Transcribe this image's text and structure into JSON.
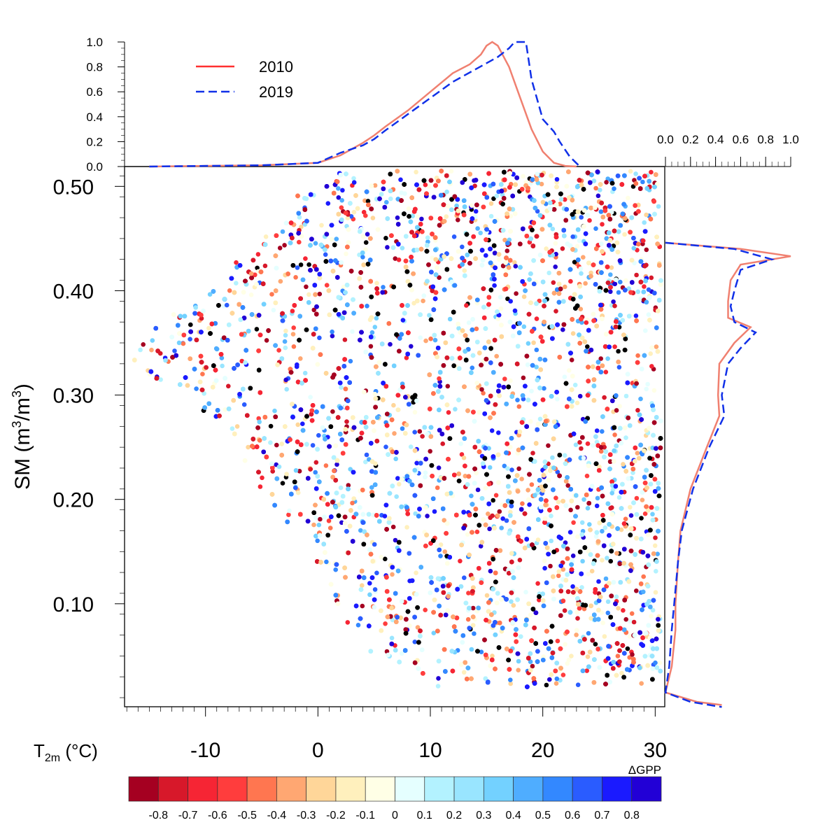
{
  "chart_data": {
    "type": "scatter",
    "xlabel": "T",
    "xlabel_sub": "2m",
    "xlabel_unit": " (°C)",
    "ylabel": "SM (m",
    "ylabel_sup1": "3",
    "ylabel_mid": "/m",
    "ylabel_sup2": "3",
    "ylabel_end": ")",
    "xlim": [
      -17.2,
      30.85
    ],
    "ylim": [
      0.0013,
      0.519
    ],
    "xticks": [
      {
        "v": -10,
        "l": "-10"
      },
      {
        "v": 0,
        "l": "0"
      },
      {
        "v": 10,
        "l": "10"
      },
      {
        "v": 20,
        "l": "20"
      },
      {
        "v": 30,
        "l": "30"
      }
    ],
    "yticks": [
      {
        "v": 0.5,
        "l": "0.50"
      },
      {
        "v": 0.4,
        "l": "0.40"
      },
      {
        "v": 0.3,
        "l": "0.30"
      },
      {
        "v": 0.2,
        "l": "0.20"
      },
      {
        "v": 0.1,
        "l": "0.10"
      }
    ],
    "scatter_envelope": {
      "sm": [
        0.02,
        0.05,
        0.1,
        0.15,
        0.2,
        0.25,
        0.3,
        0.33,
        0.36,
        0.4,
        0.45,
        0.5,
        0.515
      ],
      "tmin": [
        12,
        6,
        2.5,
        0.5,
        -3,
        -6,
        -12,
        -15,
        -14,
        -8,
        -4,
        0.5,
        1
      ],
      "tmax": 30.5,
      "n_points": 9000,
      "black_fraction": 0.05
    },
    "colorbar": {
      "title": "ΔGPP",
      "labels": [
        "-0.8",
        "-0.7",
        "-0.6",
        "-0.5",
        "-0.4",
        "-0.3",
        "-0.2",
        "-0.1",
        "0",
        "0.1",
        "0.2",
        "0.3",
        "0.4",
        "0.5",
        "0.6",
        "0.7",
        "0.8"
      ],
      "colors": [
        "#a50021",
        "#d7182a",
        "#f62534",
        "#ff3d3d",
        "#ff7650",
        "#ffa772",
        "#ffd699",
        "#fff0bd",
        "#ffffe6",
        "#e5ffff",
        "#b3f2ff",
        "#99e5ff",
        "#73d1ff",
        "#4fadff",
        "#3388ff",
        "#2a5cff",
        "#1a1aff",
        "#2200d6"
      ]
    },
    "top_marginal": {
      "ylim": [
        0,
        1
      ],
      "yticks": [
        "0.0",
        "0.2",
        "0.4",
        "0.6",
        "0.8",
        "1.0"
      ],
      "series": [
        {
          "name": "2010",
          "color": "#f08070",
          "dash": false,
          "x": [
            -15,
            -5,
            0,
            2,
            4,
            5,
            6,
            8,
            10,
            12,
            13.5,
            14.5,
            15,
            15.5,
            16,
            17,
            18,
            19,
            20,
            21,
            22,
            23
          ],
          "y": [
            0,
            0.01,
            0.03,
            0.09,
            0.19,
            0.25,
            0.32,
            0.45,
            0.6,
            0.75,
            0.82,
            0.9,
            0.97,
            1.0,
            0.97,
            0.8,
            0.55,
            0.3,
            0.12,
            0.03,
            0.005,
            0
          ]
        },
        {
          "name": "2019",
          "color": "#1030e8",
          "dash": true,
          "x": [
            -15,
            -5,
            0,
            2,
            4,
            5,
            6,
            8,
            10,
            12,
            14,
            15,
            16,
            17,
            17.5,
            18.5,
            19,
            20,
            21,
            21.5,
            22.4,
            23.3
          ],
          "y": [
            0,
            0.01,
            0.03,
            0.11,
            0.17,
            0.22,
            0.29,
            0.42,
            0.55,
            0.68,
            0.78,
            0.83,
            0.88,
            0.95,
            1.0,
            1.0,
            0.7,
            0.38,
            0.28,
            0.2,
            0.08,
            0
          ]
        }
      ]
    },
    "right_marginal": {
      "xlim": [
        0,
        1
      ],
      "xticks": [
        "0.0",
        "0.2",
        "0.4",
        "0.6",
        "0.8",
        "1.0"
      ],
      "series": [
        {
          "name": "2010",
          "color": "#f08070",
          "dash": false,
          "y": [
            0.446,
            0.44,
            0.433,
            0.425,
            0.41,
            0.39,
            0.374,
            0.365,
            0.35,
            0.33,
            0.3,
            0.28,
            0.25,
            0.21,
            0.17,
            0.14,
            0.1,
            0.075,
            0.04,
            0.015,
            0.006,
            0.003
          ],
          "x": [
            0,
            0.6,
            1.0,
            0.6,
            0.52,
            0.5,
            0.5,
            0.68,
            0.55,
            0.43,
            0.42,
            0.43,
            0.33,
            0.2,
            0.12,
            0.1,
            0.08,
            0.08,
            0.05,
            0,
            0.25,
            0.45
          ]
        },
        {
          "name": "2019",
          "color": "#1030e8",
          "dash": true,
          "y": [
            0.446,
            0.44,
            0.43,
            0.42,
            0.4,
            0.385,
            0.37,
            0.36,
            0.345,
            0.33,
            0.3,
            0.28,
            0.25,
            0.21,
            0.17,
            0.14,
            0.1,
            0.075,
            0.04,
            0.015,
            0.006,
            0.001
          ],
          "x": [
            0,
            0.55,
            0.85,
            0.6,
            0.55,
            0.52,
            0.55,
            0.72,
            0.6,
            0.5,
            0.45,
            0.47,
            0.35,
            0.22,
            0.13,
            0.1,
            0.07,
            0.05,
            0.03,
            0,
            0.2,
            0.45
          ]
        }
      ]
    },
    "legend": [
      {
        "label": "2010"
      },
      {
        "label": "2019"
      }
    ]
  }
}
